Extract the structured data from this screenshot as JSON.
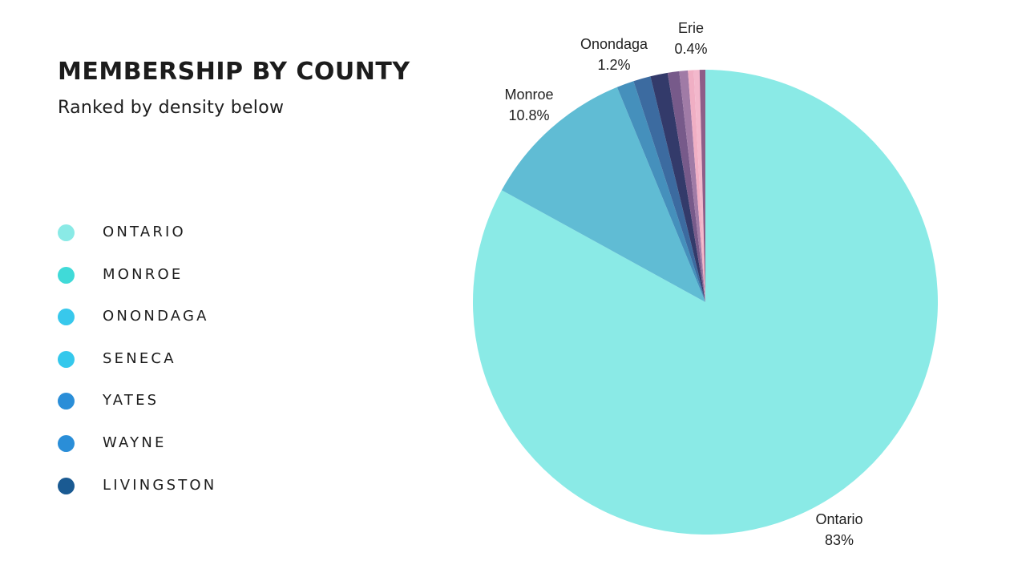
{
  "header": {
    "title": "MEMBERSHIP BY COUNTY",
    "subtitle": "Ranked by density below"
  },
  "legend": {
    "items": [
      {
        "label": "ONTARIO",
        "color": "#8AEAE6"
      },
      {
        "label": "MONROE",
        "color": "#40DAD8"
      },
      {
        "label": "ONONDAGA",
        "color": "#38C8EC"
      },
      {
        "label": "SENECA",
        "color": "#34C8EC"
      },
      {
        "label": "YATES",
        "color": "#2A8ED8"
      },
      {
        "label": "WAYNE",
        "color": "#2A8ED8"
      },
      {
        "label": "LIVINGSTON",
        "color": "#1A5A92"
      }
    ]
  },
  "chart_data": {
    "type": "pie",
    "start": "12 o'clock",
    "direction": "clockwise",
    "slices": [
      {
        "name": "Ontario",
        "value": 83,
        "label": "Ontario",
        "value_label": "83%",
        "color": "#8AEAE6"
      },
      {
        "name": "Monroe",
        "value": 10.8,
        "label": "Monroe",
        "value_label": "10.8%",
        "color": "#60BCD4"
      },
      {
        "name": "",
        "value": 1.2,
        "color": "#4590BC"
      },
      {
        "name": "",
        "value": 1.2,
        "color": "#3C6BA0"
      },
      {
        "name": "Onondaga",
        "value": 1.2,
        "label": "Onondaga",
        "value_label": "1.2%",
        "color": "#333A6A"
      },
      {
        "name": "",
        "value": 0.8,
        "color": "#775A8A"
      },
      {
        "name": "",
        "value": 0.6,
        "color": "#A07BA6"
      },
      {
        "name": "",
        "value": 0.4,
        "color": "#F0AFC4"
      },
      {
        "name": "Erie",
        "value": 0.4,
        "label": "Erie",
        "value_label": "0.4%",
        "color": "#F3B8CC"
      },
      {
        "name": "",
        "value": 0.4,
        "color": "#8E5E88"
      }
    ]
  }
}
